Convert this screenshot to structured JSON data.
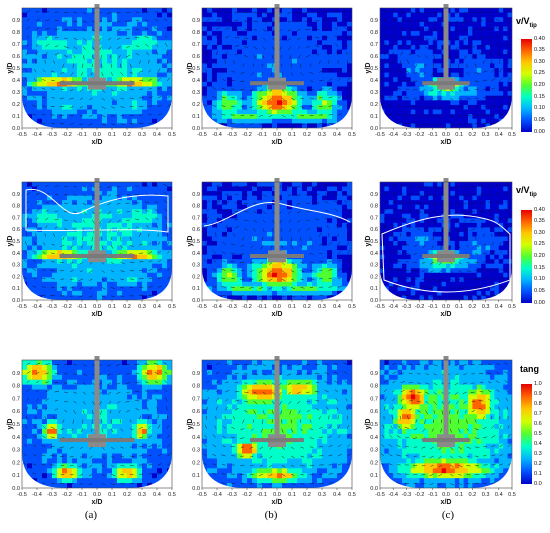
{
  "colors": {
    "background_low": "#1133dd",
    "colormap": [
      "#0000c8",
      "#0050ff",
      "#00b4ff",
      "#00ffc8",
      "#50ff32",
      "#d2ff00",
      "#ffc800",
      "#ff6400",
      "#e60000"
    ],
    "shaft": "#8a8a8a",
    "isoline": "#ffffff"
  },
  "rows": [
    {
      "id": "row-velocity",
      "colorbar": {
        "title_main": "v/V",
        "title_sub": "tip",
        "ticks": [
          "0.40",
          "0.35",
          "0.30",
          "0.25",
          "0.20",
          "0.15",
          "0.10",
          "0.05",
          "0.00"
        ]
      },
      "has_isoline": false
    },
    {
      "id": "row-velocity-isoline",
      "colorbar": {
        "title_main": "v/V",
        "title_sub": "tip",
        "ticks": [
          "0.40",
          "0.35",
          "0.30",
          "0.25",
          "0.20",
          "0.15",
          "0.10",
          "0.05",
          "0.00"
        ]
      },
      "has_isoline": true
    },
    {
      "id": "row-tangential",
      "colorbar": {
        "title_main": "tang",
        "title_sub": "",
        "ticks": [
          "1.0",
          "0.9",
          "0.8",
          "0.7",
          "0.6",
          "0.5",
          "0.4",
          "0.3",
          "0.2",
          "0.1",
          "0.0"
        ]
      },
      "has_isoline": false
    }
  ],
  "axes": {
    "xlabel": "x/D",
    "ylabel": "y/D",
    "xticks": [
      "-0.5",
      "-0.4",
      "-0.3",
      "-0.2",
      "-0.1",
      "0.0",
      "0.1",
      "0.2",
      "0.3",
      "0.4",
      "0.5"
    ],
    "yticks": [
      "0.0",
      "0.1",
      "0.2",
      "0.3",
      "0.4",
      "0.5",
      "0.6",
      "0.7",
      "0.8",
      "0.9"
    ],
    "xlim": [
      -0.5,
      0.5
    ],
    "ylim": [
      0.0,
      1.0
    ]
  },
  "captions": [
    "(a)",
    "(b)",
    "(c)"
  ]
}
